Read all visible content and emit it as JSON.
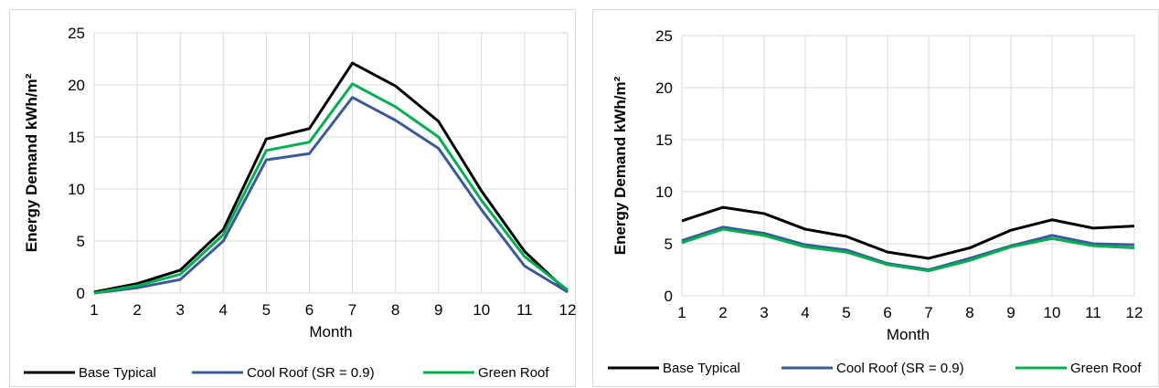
{
  "chart_data": [
    {
      "type": "line",
      "xlabel": "Month",
      "ylabel": "Energy Demand  kWh/m²",
      "x": [
        1,
        2,
        3,
        4,
        5,
        6,
        7,
        8,
        9,
        10,
        11,
        12
      ],
      "ylim": [
        0,
        25
      ],
      "yticks": [
        0,
        5,
        10,
        15,
        20,
        25
      ],
      "grid": true,
      "legend_position": "bottom",
      "series": [
        {
          "name": "Base Typical",
          "color": "#000000",
          "values": [
            0.1,
            0.9,
            2.2,
            6.1,
            14.8,
            15.8,
            22.1,
            19.9,
            16.5,
            9.8,
            4.0,
            0.1
          ]
        },
        {
          "name": "Cool Roof (SR = 0.9)",
          "color": "#3a5a9a",
          "values": [
            0.0,
            0.5,
            1.3,
            5.0,
            12.8,
            13.4,
            18.8,
            16.6,
            13.9,
            8.0,
            2.6,
            0.1
          ]
        },
        {
          "name": "Green Roof",
          "color": "#00b050",
          "values": [
            0.0,
            0.7,
            1.8,
            5.6,
            13.7,
            14.5,
            20.1,
            17.9,
            15.0,
            8.9,
            3.5,
            0.3
          ]
        }
      ]
    },
    {
      "type": "line",
      "xlabel": "Month",
      "ylabel": "Energy Demand  kWh/m²",
      "x": [
        1,
        2,
        3,
        4,
        5,
        6,
        7,
        8,
        9,
        10,
        11,
        12
      ],
      "ylim": [
        0,
        25
      ],
      "yticks": [
        0,
        5,
        10,
        15,
        20,
        25
      ],
      "grid": true,
      "legend_position": "bottom",
      "series": [
        {
          "name": "Base Typical",
          "color": "#000000",
          "values": [
            7.2,
            8.5,
            7.9,
            6.4,
            5.7,
            4.2,
            3.6,
            4.6,
            6.3,
            7.3,
            6.5,
            6.7
          ]
        },
        {
          "name": "Cool Roof (SR = 0.9)",
          "color": "#3a5a9a",
          "values": [
            5.3,
            6.6,
            6.0,
            4.9,
            4.4,
            3.1,
            2.5,
            3.6,
            4.8,
            5.8,
            5.0,
            4.9
          ]
        },
        {
          "name": "Green Roof",
          "color": "#00b050",
          "values": [
            5.1,
            6.4,
            5.8,
            4.7,
            4.2,
            3.0,
            2.4,
            3.4,
            4.7,
            5.5,
            4.8,
            4.6
          ]
        }
      ]
    }
  ]
}
